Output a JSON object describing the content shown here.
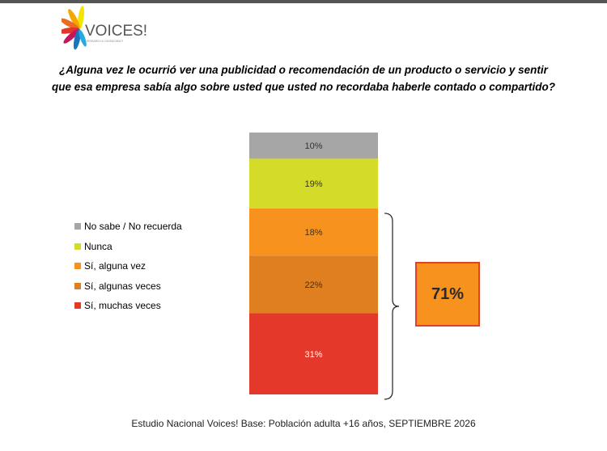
{
  "logo": {
    "brand": "VOICES!",
    "tagline": "RESEARCH & CONSULTANCY"
  },
  "question": "¿Alguna vez le ocurrió ver una publicidad o recomendación de un producto o servicio y sentir que esa empresa sabía algo sobre usted que usted no recordaba haberle contado o compartido?",
  "chart_data": {
    "type": "bar",
    "stacked": true,
    "series": [
      {
        "name": "No sabe / No recuerda",
        "value": 10,
        "label": "10%",
        "color": "#a6a6a6"
      },
      {
        "name": "Nunca",
        "value": 19,
        "label": "19%",
        "color": "#d4dc29"
      },
      {
        "name": "Sí, alguna vez",
        "value": 18,
        "label": "18%",
        "color": "#f7921e"
      },
      {
        "name": "Sí, algunas veces",
        "value": 22,
        "label": "22%",
        "color": "#e07f20"
      },
      {
        "name": "Sí, muchas veces",
        "value": 31,
        "label": "31%",
        "color": "#e4392a"
      }
    ],
    "legend_position": "left",
    "bracket_total": "71%",
    "bracket_covers": [
      "Sí, alguna vez",
      "Sí, algunas veces",
      "Sí, muchas veces"
    ]
  },
  "highlight_color": "#f7921e",
  "footer": "Estudio Nacional Voices! Base: Población adulta +16 años, SEPTIEMBRE 2026"
}
